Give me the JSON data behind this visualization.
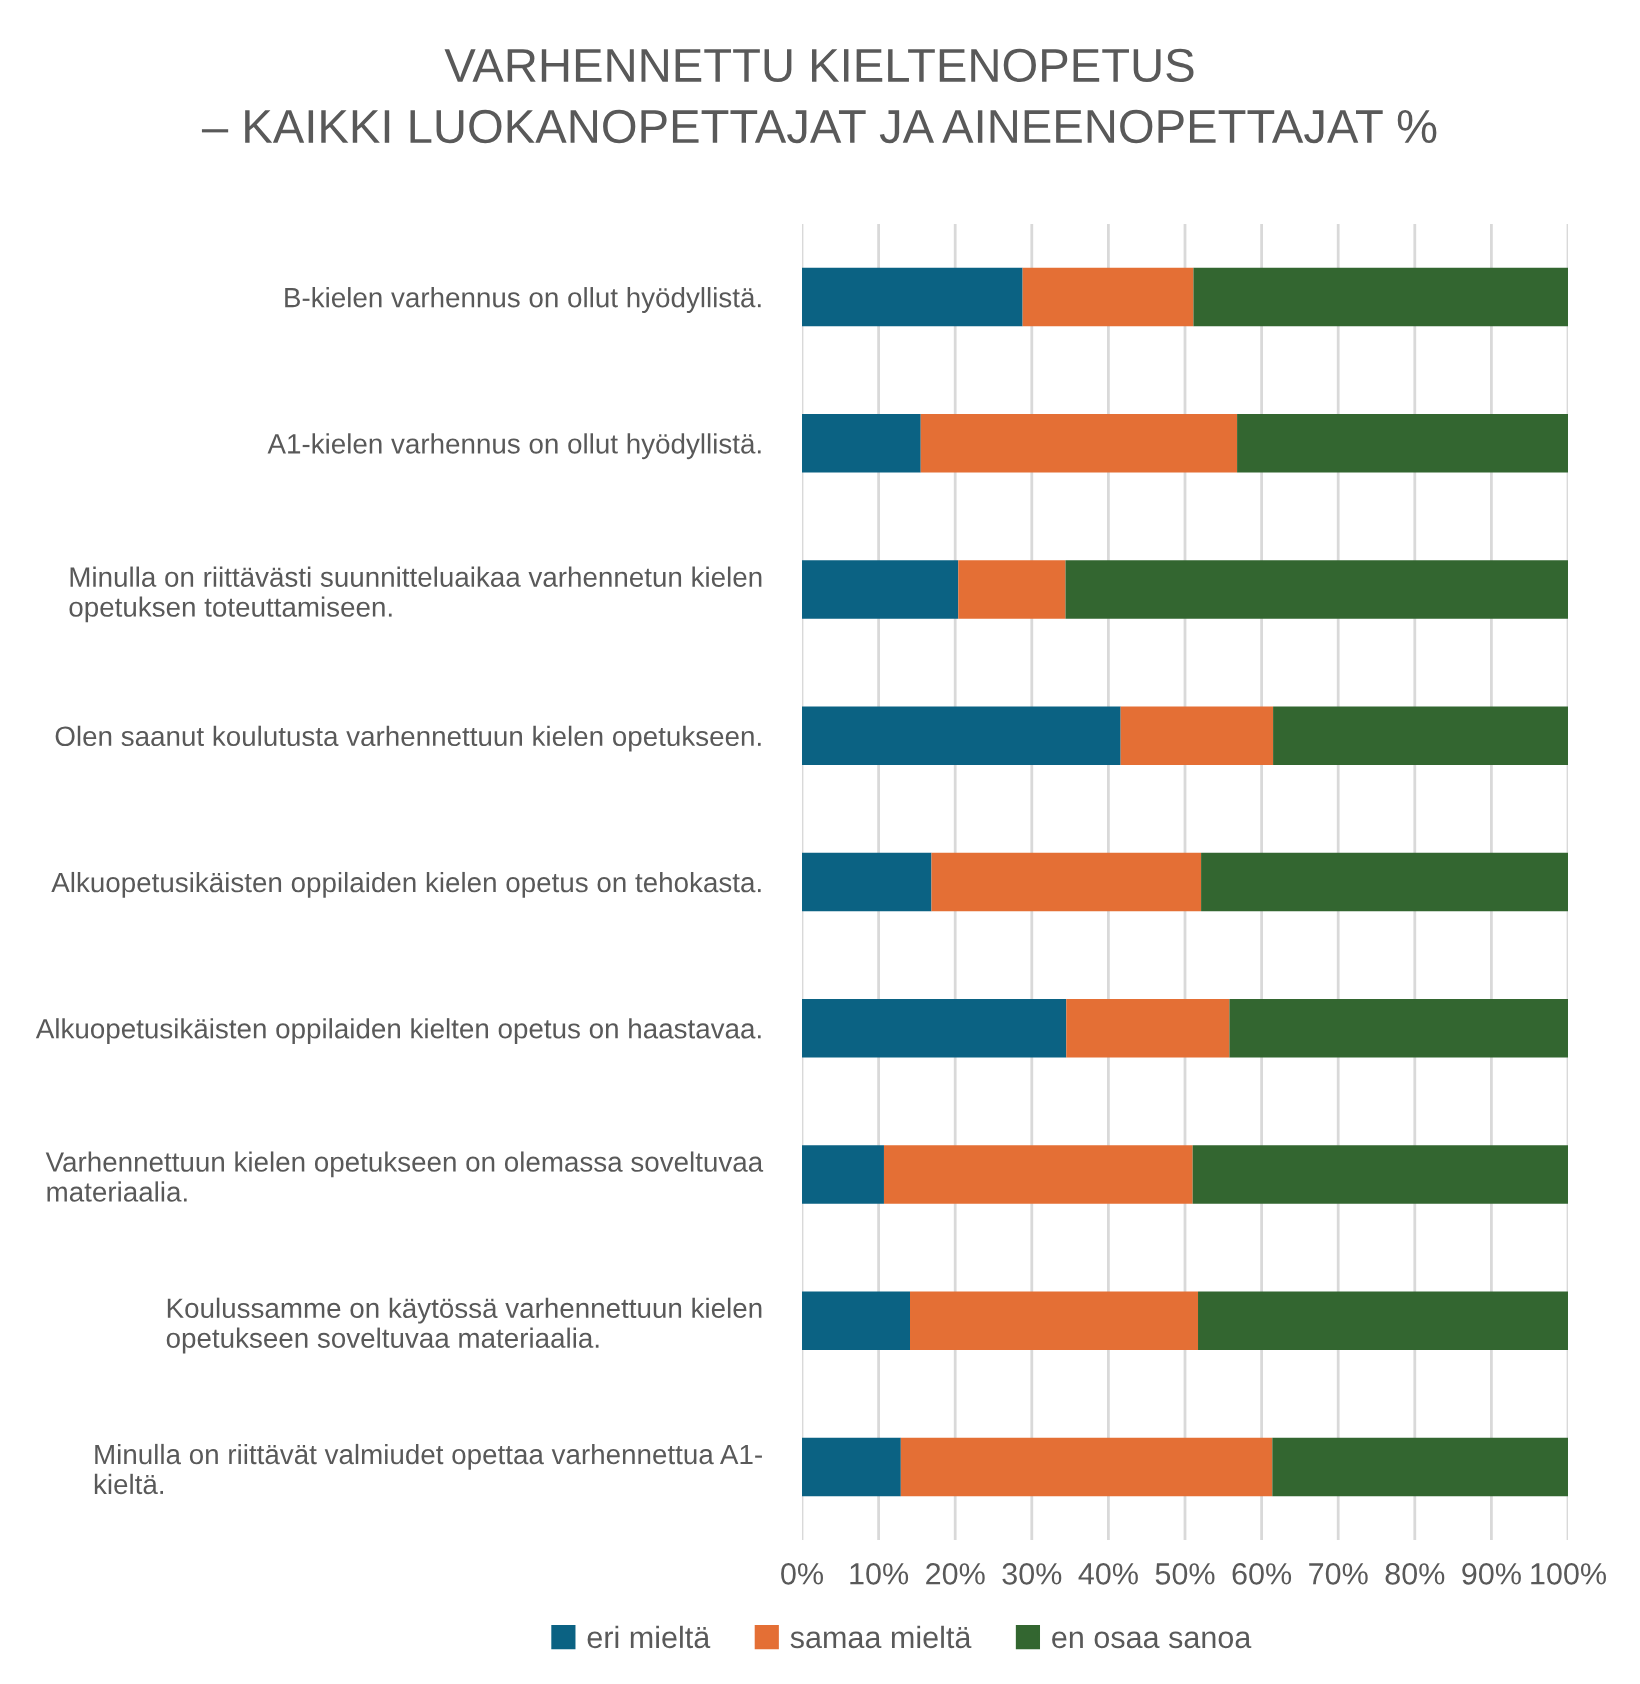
{
  "chart_data": {
    "type": "bar",
    "orientation": "horizontal",
    "stacked": true,
    "title": "VARHENNETTU KIELTENOPETUS\n– KAIKKI LUOKANOPETTAJAT JA AINEENOPETTAJAT %",
    "categories": [
      "B-kielen varhennus on ollut hyödyllistä.",
      "A1-kielen varhennus on ollut hyödyllistä.",
      "Minulla on riittävästi suunnitteluaikaa varhennetun kielen\nopetuksen toteuttamiseen.",
      "Olen saanut koulutusta varhennettuun kielen opetukseen.",
      "Alkuopetusikäisten oppilaiden kielen opetus on tehokasta.",
      "Alkuopetusikäisten oppilaiden kielten opetus on haastavaa.",
      "Varhennettuun kielen opetukseen on olemassa soveltuvaa\nmateriaalia.",
      "Koulussamme on käytössä varhennettuun kielen\nopetukseen soveltuvaa materiaalia.",
      "Minulla on riittävät valmiudet opettaa varhennettua A1-\nkieltä."
    ],
    "series": [
      {
        "name": "eri mieltä",
        "color": "#0b6283",
        "values": [
          28.8,
          15.5,
          20.4,
          41.6,
          16.9,
          34.5,
          10.7,
          14.1,
          12.9
        ]
      },
      {
        "name": "samaa mieltä",
        "color": "#e46f35",
        "values": [
          22.3,
          41.3,
          14.0,
          19.9,
          35.2,
          21.3,
          40.3,
          37.6,
          48.5
        ]
      },
      {
        "name": "en osaa sanoa",
        "color": "#336630",
        "values": [
          48.9,
          43.2,
          65.6,
          38.5,
          47.9,
          44.2,
          49.0,
          48.3,
          38.6
        ]
      }
    ],
    "xlim": [
      0,
      100
    ],
    "xticks": [
      {
        "value": 0,
        "label": "0%"
      },
      {
        "value": 10,
        "label": "10%"
      },
      {
        "value": 20,
        "label": "20%"
      },
      {
        "value": 30,
        "label": "30%"
      },
      {
        "value": 40,
        "label": "40%"
      },
      {
        "value": 50,
        "label": "50%"
      },
      {
        "value": 60,
        "label": "60%"
      },
      {
        "value": 70,
        "label": "70%"
      },
      {
        "value": 80,
        "label": "80%"
      },
      {
        "value": 90,
        "label": "90%"
      },
      {
        "value": 100,
        "label": "100%"
      }
    ],
    "grid": "x",
    "legend": "bottom"
  }
}
